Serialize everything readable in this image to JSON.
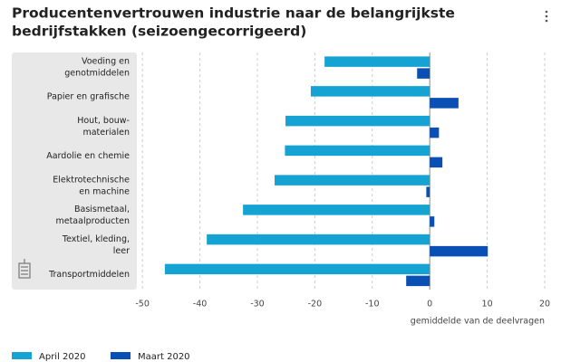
{
  "chart_data": {
    "type": "hbar",
    "title": [
      "Producentenvertrouwen industrie naar de belangrijkste",
      "bedrijfstakken (seizoengecorrigeerd)"
    ],
    "xlabel": "gemiddelde van de deelvragen",
    "categories": [
      [
        "Voeding en",
        "genotmiddelen"
      ],
      [
        "Papier en grafische"
      ],
      [
        "Hout, bouw-",
        "materialen"
      ],
      [
        "Aardolie en chemie"
      ],
      [
        "Elektrotechnische",
        "en machine"
      ],
      [
        "Basismetaal,",
        "metaalproducten"
      ],
      [
        "Textiel, kleding,",
        "leer"
      ],
      [
        "Transportmiddelen"
      ]
    ],
    "series": [
      {
        "name": "April 2020",
        "color": "#14a3d2",
        "values": [
          -18.3,
          -20.7,
          -25.1,
          -25.2,
          -27.0,
          -32.5,
          -38.8,
          -46.1
        ]
      },
      {
        "name": "Maart 2020",
        "color": "#0a4fb3",
        "values": [
          -2.2,
          5.0,
          1.6,
          2.2,
          -0.6,
          0.8,
          10.1,
          -4.1
        ]
      }
    ],
    "xlim": [
      -51,
      20
    ],
    "xticks": [
      -50,
      -40,
      -30,
      -20,
      -10,
      0,
      10,
      20
    ],
    "grid": true
  }
}
